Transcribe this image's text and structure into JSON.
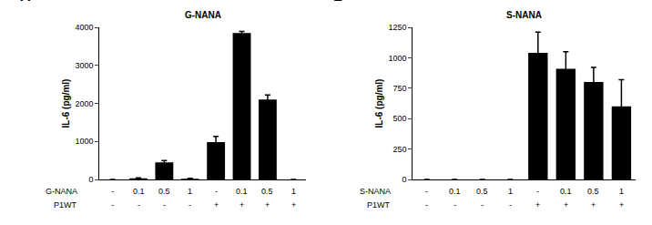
{
  "chart_data": [
    {
      "type": "bar",
      "panel": "A",
      "title": "G-NANA",
      "y_label": "IL-6 (pg/ml)",
      "rows": [
        {
          "label": "G-NANA",
          "cells": [
            "-",
            "0.1",
            "0.5",
            "1",
            "-",
            "0.1",
            "0.5",
            "1"
          ]
        },
        {
          "label": "P1WT",
          "cells": [
            "-",
            "-",
            "-",
            "-",
            "+",
            "+",
            "+",
            "+"
          ]
        }
      ],
      "values": [
        0,
        30,
        450,
        20,
        980,
        3850,
        2100,
        0
      ],
      "errors": [
        0,
        10,
        50,
        10,
        150,
        40,
        120,
        0
      ],
      "color": "#000000",
      "ylim": [
        0,
        4000
      ],
      "yticks": [
        0,
        1000,
        2000,
        3000,
        4000
      ],
      "grid": false,
      "tick_labels": "y"
    },
    {
      "type": "bar",
      "panel": "B",
      "title": "S-NANA",
      "y_label": "IL-6 (pg/ml)",
      "rows": [
        {
          "label": "S-NANA",
          "cells": [
            "-",
            "0.1",
            "0.5",
            "1",
            "-",
            "0.1",
            "0.5",
            "1"
          ]
        },
        {
          "label": "P1WT",
          "cells": [
            "-",
            "-",
            "-",
            "-",
            "+",
            "+",
            "+",
            "+"
          ]
        }
      ],
      "values": [
        0,
        0,
        0,
        0,
        1040,
        910,
        800,
        600
      ],
      "errors": [
        0,
        0,
        0,
        0,
        170,
        140,
        120,
        220
      ],
      "color": "#000000",
      "ylim": [
        0,
        1250
      ],
      "yticks": [
        0,
        250,
        500,
        750,
        1000,
        1250
      ],
      "grid": false,
      "tick_labels": "y"
    }
  ]
}
